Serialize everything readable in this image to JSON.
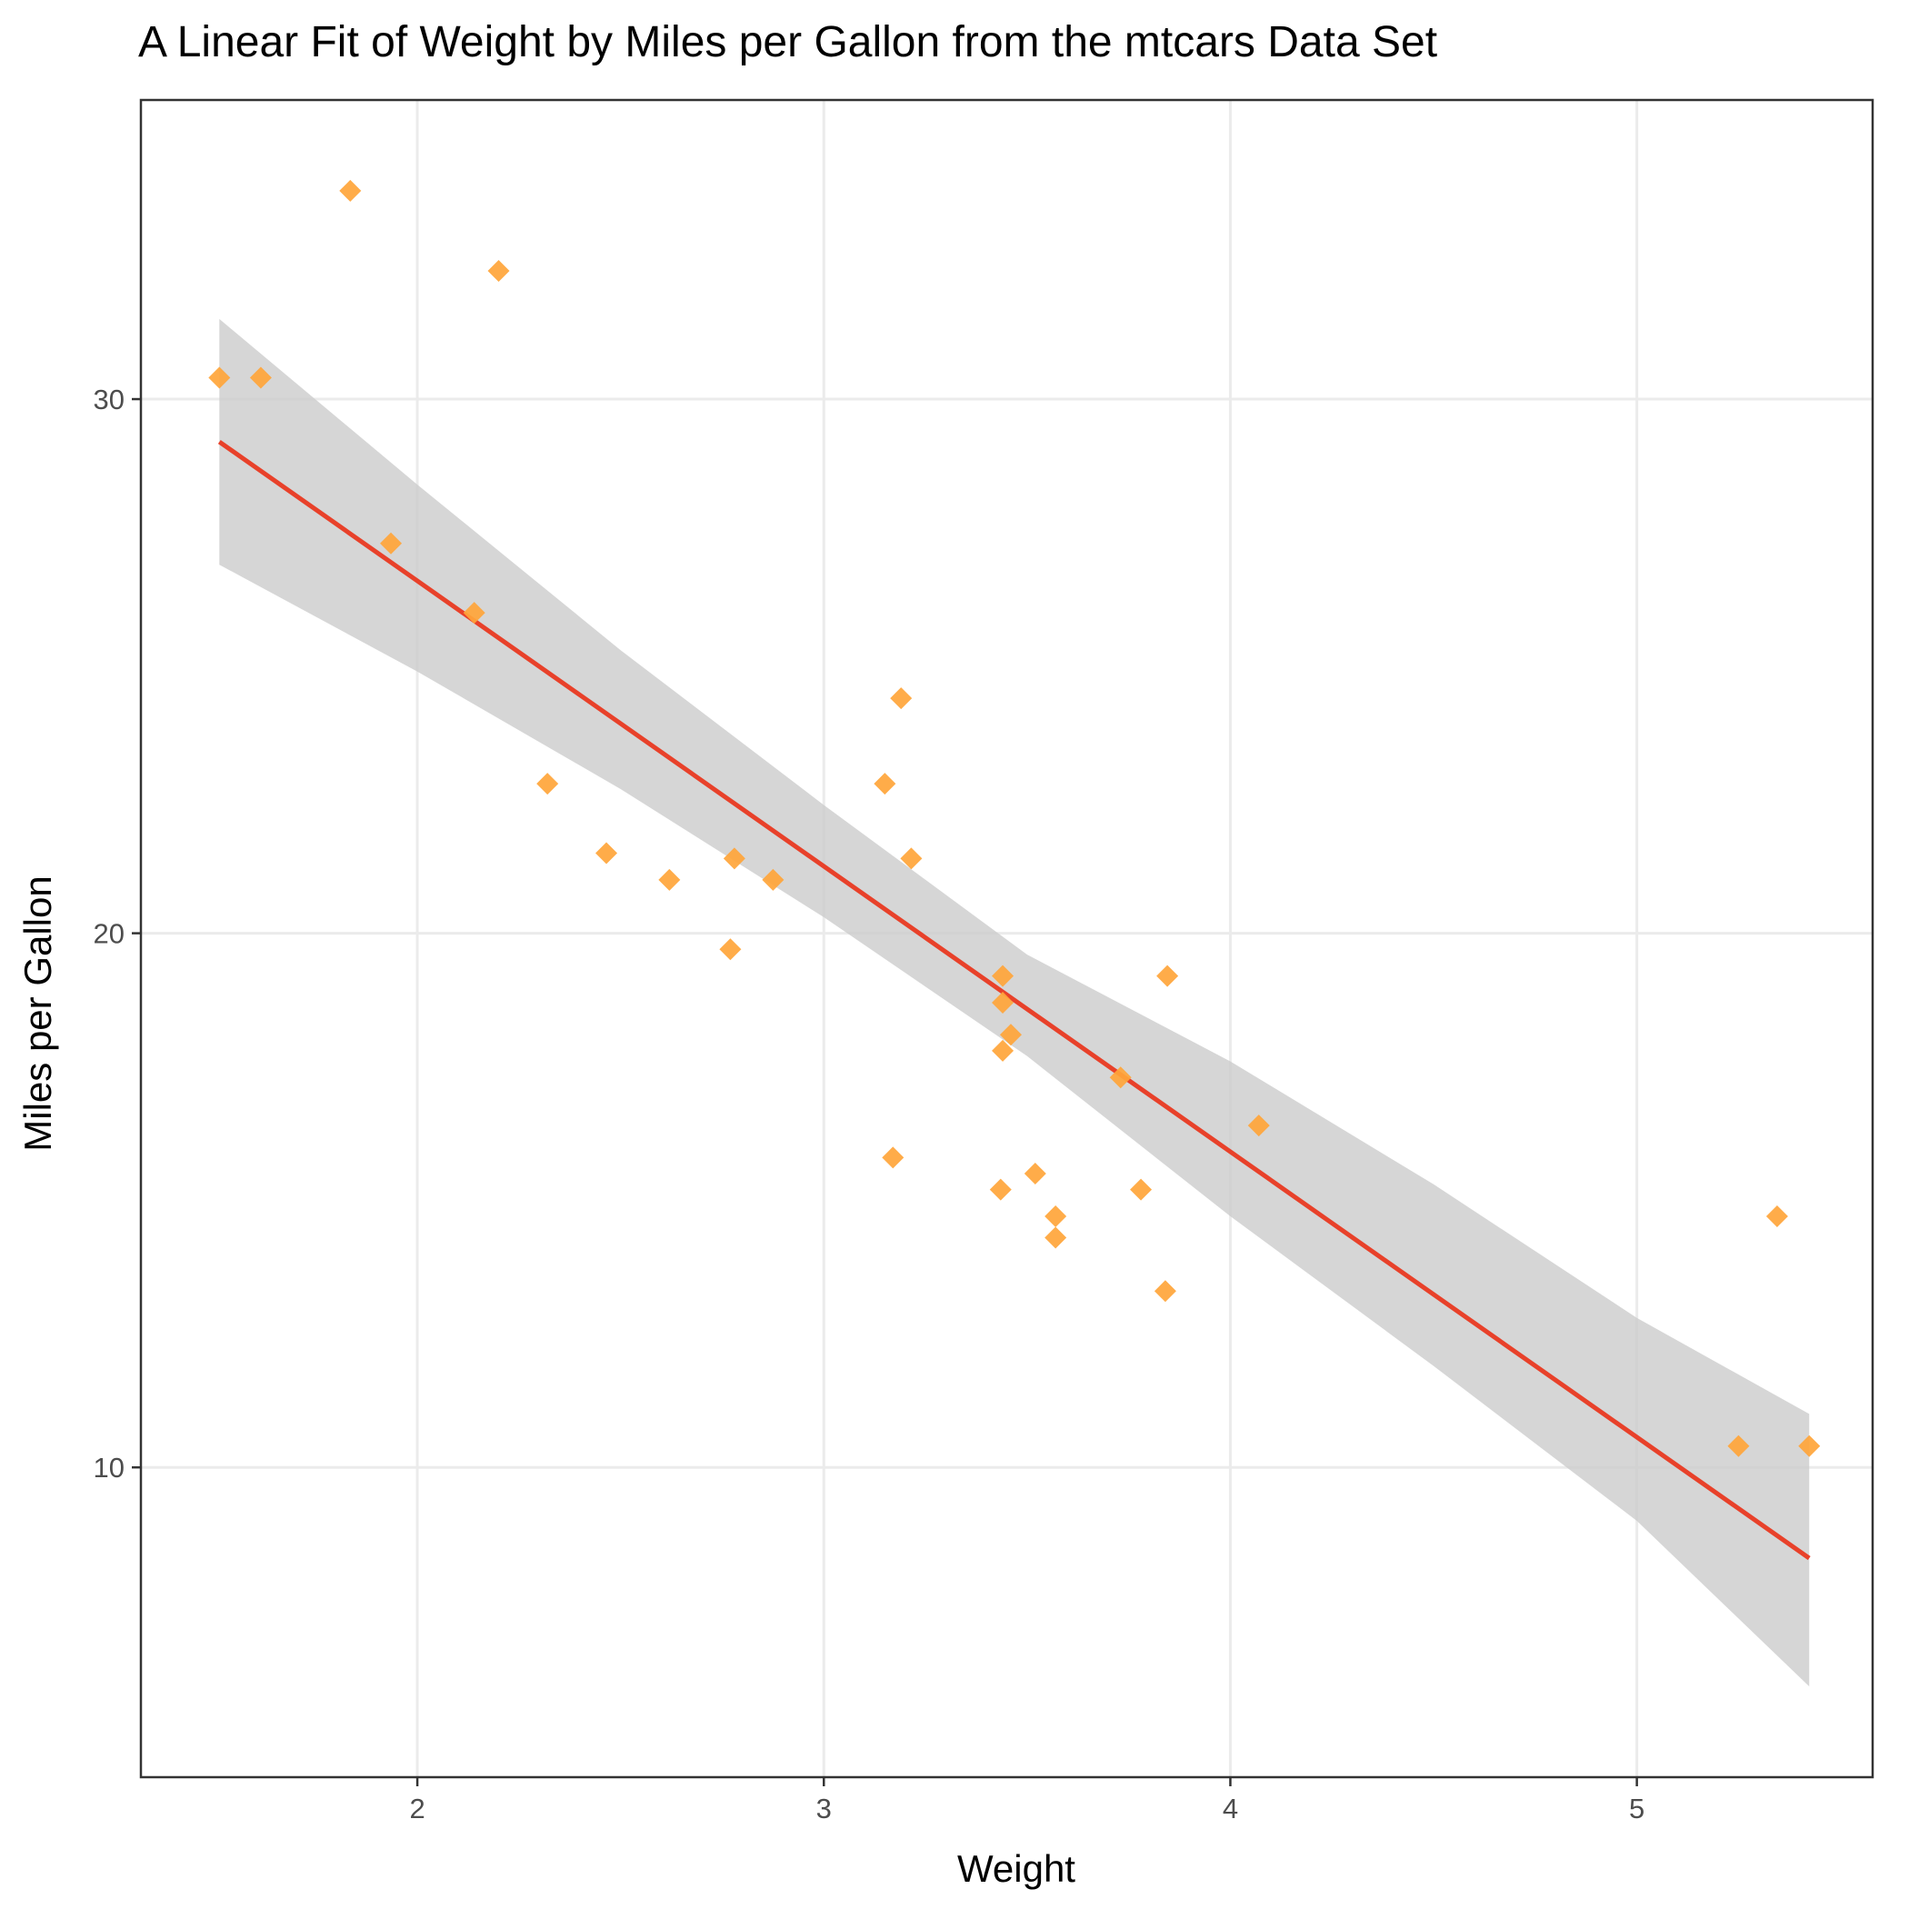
{
  "chart_data": {
    "type": "scatter",
    "title": "A Linear Fit of Weight by Miles per Gallon from the mtcars Data Set",
    "xlabel": "Weight",
    "ylabel": "Miles per Gallon",
    "xlim": [
      1.32,
      5.58
    ],
    "ylim": [
      4.2,
      35.6
    ],
    "x_ticks": [
      2,
      3,
      4,
      5
    ],
    "y_ticks": [
      10,
      20,
      30
    ],
    "x_tick_labels": [
      "2",
      "3",
      "4",
      "5"
    ],
    "y_tick_labels": [
      "10",
      "20",
      "30"
    ],
    "grid": true,
    "legend": "none",
    "point_color": "#ffa53a",
    "fit_line_color": "#e8412a",
    "confidence_band_color": "#cccccc",
    "series": [
      {
        "type": "scatter",
        "x": [
          1.513,
          1.615,
          1.835,
          1.935,
          2.14,
          2.2,
          2.32,
          2.465,
          2.62,
          2.77,
          2.78,
          2.875,
          3.15,
          3.17,
          3.19,
          3.215,
          3.435,
          3.44,
          3.44,
          3.44,
          3.46,
          3.52,
          3.57,
          3.57,
          3.73,
          3.78,
          3.84,
          3.845,
          4.07,
          5.25,
          5.345,
          5.424
        ],
        "y": [
          30.4,
          30.4,
          33.9,
          27.3,
          26.0,
          32.4,
          22.8,
          21.5,
          21.0,
          19.7,
          21.4,
          21.0,
          22.8,
          15.8,
          24.4,
          21.4,
          15.2,
          19.2,
          18.7,
          17.8,
          18.1,
          15.5,
          14.3,
          14.7,
          17.3,
          15.2,
          13.3,
          19.2,
          16.4,
          10.4,
          14.7,
          10.4
        ]
      },
      {
        "type": "line",
        "x": [
          1.513,
          5.424
        ],
        "y": [
          29.2,
          8.3
        ]
      },
      {
        "type": "area",
        "x": [
          1.513,
          2.0,
          2.5,
          3.0,
          3.5,
          4.0,
          4.5,
          5.0,
          5.424
        ],
        "y_lower": [
          26.9,
          24.9,
          22.7,
          20.3,
          17.7,
          14.7,
          11.9,
          9.0,
          5.9
        ],
        "y_upper": [
          31.5,
          28.4,
          25.3,
          22.4,
          19.6,
          17.6,
          15.3,
          12.8,
          11.0
        ]
      }
    ]
  }
}
